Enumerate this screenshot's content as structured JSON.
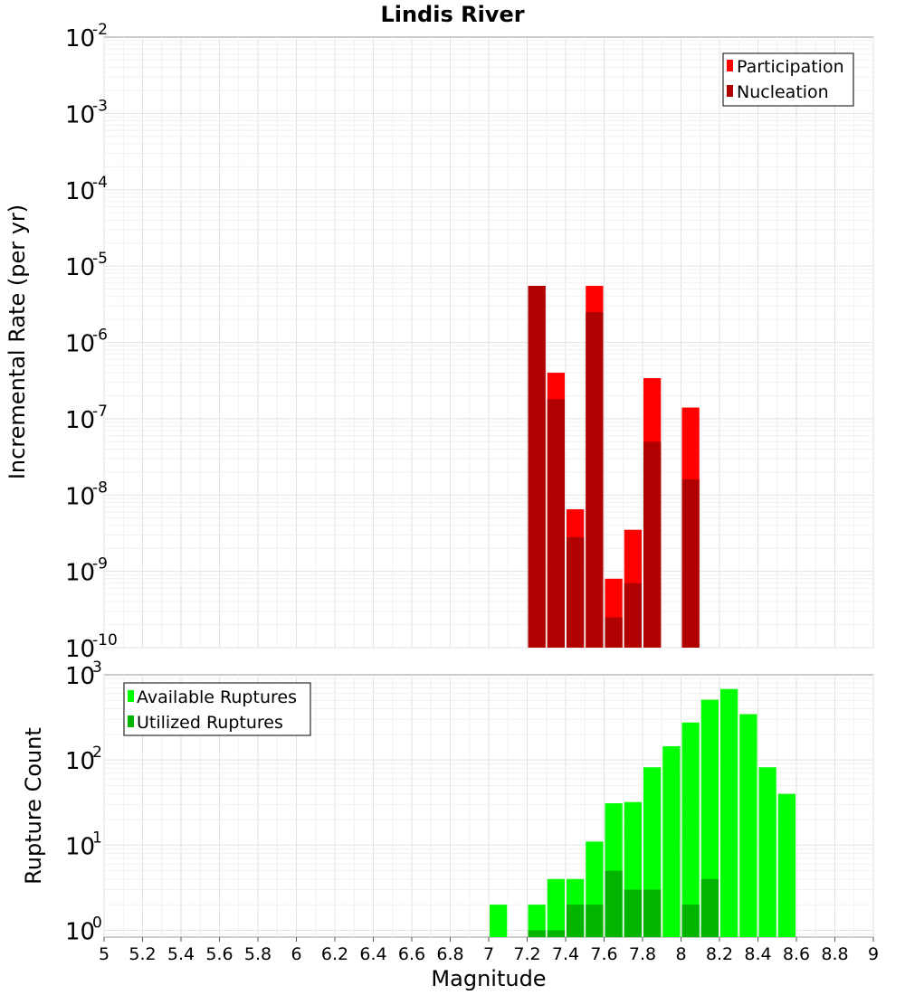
{
  "title": "Lindis River",
  "colors": {
    "participation": "#ff0000",
    "nucleation": "#b00000",
    "available": "#00ff00",
    "utilized": "#00b400"
  },
  "chart_data": [
    {
      "type": "bar",
      "scale": "log",
      "title": "Lindis River",
      "ylabel": "Incremental Rate (per yr)",
      "xlabel": "",
      "xlim": [
        5,
        9
      ],
      "ylim_exp": [
        -10,
        -2
      ],
      "y_tick_labels": [
        {
          "base": "10",
          "exp": "-2"
        },
        {
          "base": "10",
          "exp": "-3"
        },
        {
          "base": "10",
          "exp": "-4"
        },
        {
          "base": "10",
          "exp": "-5"
        },
        {
          "base": "10",
          "exp": "-6"
        },
        {
          "base": "10",
          "exp": "-7"
        },
        {
          "base": "10",
          "exp": "-8"
        },
        {
          "base": "10",
          "exp": "-9"
        },
        {
          "base": "10",
          "exp": "-10"
        }
      ],
      "legend_position": "top-right",
      "series": [
        {
          "name": "Participation",
          "color": "#ff0000",
          "x": [
            7.25,
            7.35,
            7.45,
            7.55,
            7.65,
            7.75,
            7.85,
            8.05
          ],
          "values": [
            5.5e-06,
            4e-07,
            6.5e-09,
            5.5e-06,
            8e-10,
            3.5e-09,
            3.4e-07,
            1.4e-07
          ]
        },
        {
          "name": "Nucleation",
          "color": "#b00000",
          "x": [
            7.25,
            7.35,
            7.45,
            7.55,
            7.65,
            7.75,
            7.85,
            8.05
          ],
          "values": [
            5.5e-06,
            1.8e-07,
            2.8e-09,
            2.5e-06,
            2.5e-10,
            7e-10,
            5e-08,
            1.6e-08
          ]
        }
      ]
    },
    {
      "type": "bar",
      "scale": "log",
      "ylabel": "Rupture Count",
      "xlabel": "Magnitude",
      "xlim": [
        5,
        9
      ],
      "ylim_exp": [
        -0.08,
        3
      ],
      "x_ticks": [
        "5",
        "5.2",
        "5.4",
        "5.6",
        "5.8",
        "6",
        "6.2",
        "6.4",
        "6.6",
        "6.8",
        "7",
        "7.2",
        "7.4",
        "7.6",
        "7.8",
        "8",
        "8.2",
        "8.4",
        "8.6",
        "8.8",
        "9"
      ],
      "y_tick_labels": [
        {
          "base": "10",
          "exp": "3"
        },
        {
          "base": "10",
          "exp": "2"
        },
        {
          "base": "10",
          "exp": "1"
        },
        {
          "base": "10",
          "exp": "0"
        }
      ],
      "legend_position": "top-left",
      "series": [
        {
          "name": "Available Ruptures",
          "color": "#00ff00",
          "x": [
            7.05,
            7.25,
            7.35,
            7.45,
            7.55,
            7.65,
            7.75,
            7.85,
            7.95,
            8.05,
            8.15,
            8.25,
            8.35,
            8.45,
            8.55
          ],
          "values": [
            2,
            2,
            4,
            4,
            11,
            31,
            32,
            82,
            145,
            275,
            510,
            680,
            345,
            82,
            40
          ]
        },
        {
          "name": "Utilized Ruptures",
          "color": "#00b400",
          "x": [
            7.25,
            7.35,
            7.45,
            7.55,
            7.65,
            7.75,
            7.85,
            8.05,
            8.15
          ],
          "values": [
            1,
            1,
            2,
            2,
            5,
            3,
            3,
            2,
            4
          ]
        }
      ]
    }
  ]
}
